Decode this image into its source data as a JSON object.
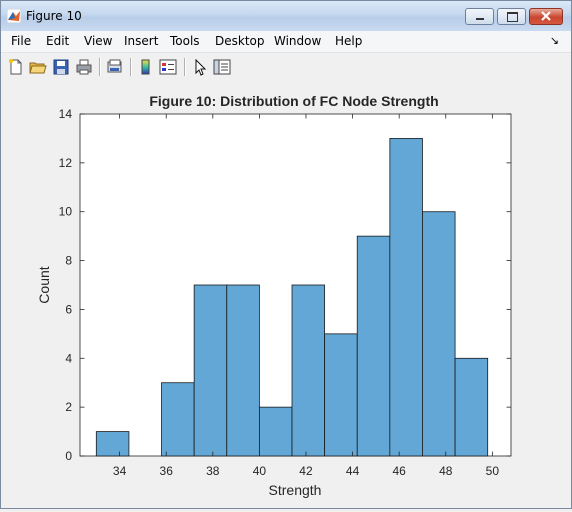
{
  "window": {
    "title": "Figure 10"
  },
  "menu": [
    "File",
    "Edit",
    "View",
    "Insert",
    "Tools",
    "Desktop",
    "Window",
    "Help"
  ],
  "toolbar": {
    "icons": [
      "new-figure-icon",
      "open-file-icon",
      "save-icon",
      "print-icon",
      "print-preview-icon",
      "insert-colorbar-icon",
      "insert-legend-icon",
      "edit-plot-icon",
      "plot-browser-icon"
    ]
  },
  "colors": {
    "bar_fill": "#62a7d6",
    "bar_edge": "#1a1a1a"
  },
  "chart_data": {
    "type": "bar",
    "title": "Figure 10: Distribution of FC Node Strength",
    "xlabel": "Strength",
    "ylabel": "Count",
    "xlim": [
      32.3,
      50.8
    ],
    "ylim": [
      0,
      14
    ],
    "xticks": [
      34,
      36,
      38,
      40,
      42,
      44,
      46,
      48,
      50
    ],
    "yticks": [
      0,
      2,
      4,
      6,
      8,
      10,
      12,
      14
    ],
    "bin_edges": [
      33.0,
      34.4,
      35.8,
      37.2,
      38.6,
      40.0,
      41.4,
      42.8,
      44.2,
      45.6,
      47.0,
      48.4,
      49.8
    ],
    "values": [
      1,
      0,
      3,
      7,
      7,
      2,
      7,
      5,
      9,
      13,
      10,
      4
    ],
    "grid": false
  }
}
